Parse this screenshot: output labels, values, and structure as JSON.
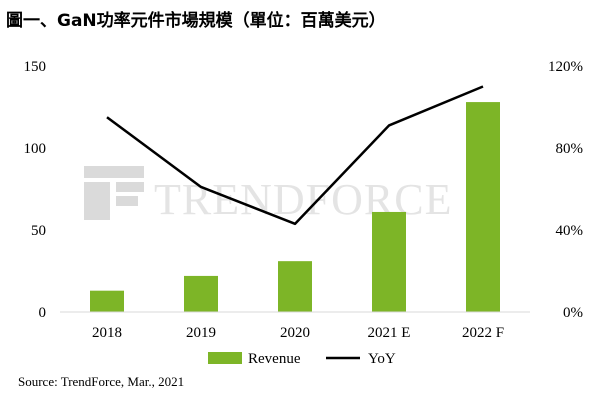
{
  "title": "圖一、GaN功率元件市場規模（單位：百萬美元）",
  "source": "Source: TrendForce, Mar., 2021",
  "watermark": {
    "text": "TRENDFORCE",
    "type": "logo"
  },
  "colors": {
    "bar": "#7db527",
    "line": "#000000",
    "watermark": "#cfcfcf"
  },
  "chart_data": {
    "type": "bar",
    "title": "圖一、GaN功率元件市場規模（單位：百萬美元）",
    "categories": [
      "2018",
      "2019",
      "2020",
      "2021 E",
      "2022 F"
    ],
    "series": [
      {
        "name": "Revenue",
        "type": "bar",
        "axis": "left",
        "values": [
          13,
          22,
          31,
          61,
          128
        ]
      },
      {
        "name": "YoY",
        "type": "line",
        "axis": "right",
        "values": [
          0.95,
          0.61,
          0.43,
          0.91,
          1.1
        ]
      }
    ],
    "y_left": {
      "min": 0,
      "max": 150,
      "ticks": [
        0,
        50,
        100,
        150
      ],
      "tick_labels": [
        "0",
        "50",
        "100",
        "150"
      ]
    },
    "y_right": {
      "min": 0,
      "max": 1.2,
      "ticks": [
        0,
        0.4,
        0.8,
        1.2
      ],
      "tick_labels": [
        "0%",
        "40%",
        "80%",
        "120%"
      ]
    },
    "legend": {
      "position": "bottom",
      "entries": [
        "Revenue",
        "YoY"
      ]
    },
    "grid": false
  }
}
